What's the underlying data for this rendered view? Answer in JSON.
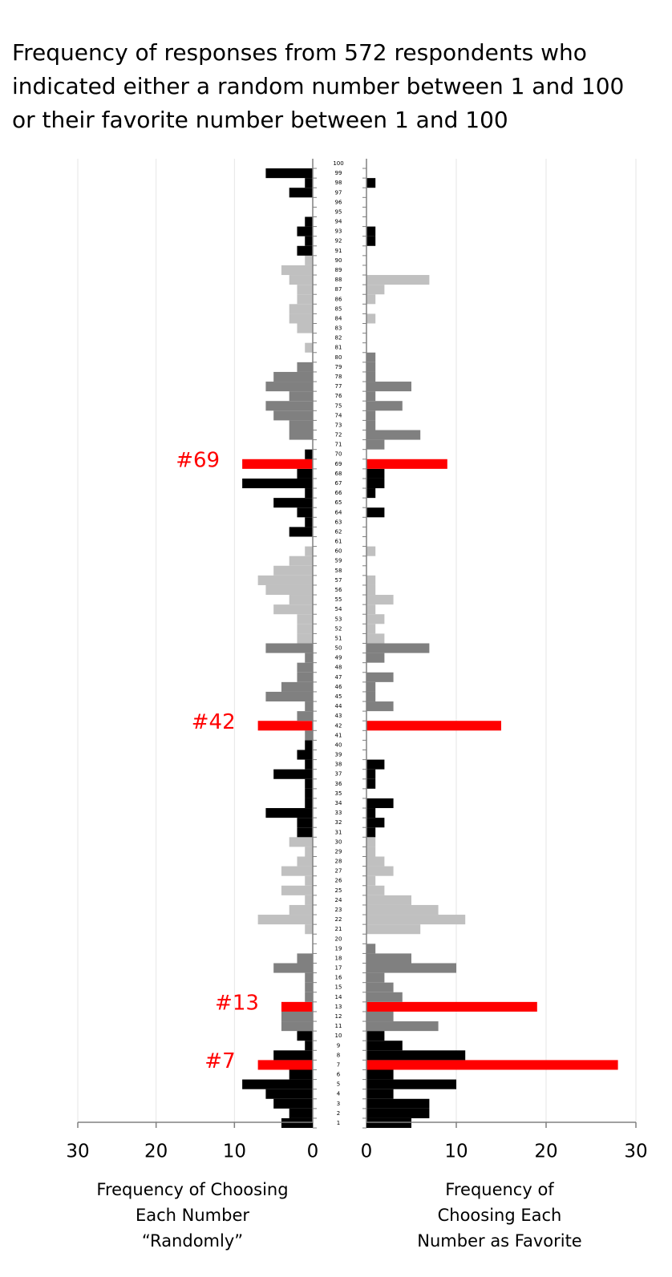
{
  "chart_data": {
    "type": "butterfly",
    "title": [
      "Frequency of responses from 572 respondents who",
      "indicated either a random number between 1 and 100",
      "or their favorite number between 1 and 100"
    ],
    "categories": [
      1,
      2,
      3,
      4,
      5,
      6,
      7,
      8,
      9,
      10,
      11,
      12,
      13,
      14,
      15,
      16,
      17,
      18,
      19,
      20,
      21,
      22,
      23,
      24,
      25,
      26,
      27,
      28,
      29,
      30,
      31,
      32,
      33,
      34,
      35,
      36,
      37,
      38,
      39,
      40,
      41,
      42,
      43,
      44,
      45,
      46,
      47,
      48,
      49,
      50,
      51,
      52,
      53,
      54,
      55,
      56,
      57,
      58,
      59,
      60,
      61,
      62,
      63,
      64,
      65,
      66,
      67,
      68,
      69,
      70,
      71,
      72,
      73,
      74,
      75,
      76,
      77,
      78,
      79,
      80,
      81,
      82,
      83,
      84,
      85,
      86,
      87,
      88,
      89,
      90,
      91,
      92,
      93,
      94,
      95,
      96,
      97,
      98,
      99,
      100
    ],
    "color_cycle": [
      "#000000",
      "#808080",
      "#c0c0c0"
    ],
    "color_group_size": 10,
    "highlight_color": "#ff0000",
    "annotations": [
      {
        "text": "#7",
        "value": 7
      },
      {
        "text": "#13",
        "value": 13
      },
      {
        "text": "#42",
        "value": 42
      },
      {
        "text": "#69",
        "value": 69
      }
    ],
    "grid": true,
    "left": {
      "xlabel": [
        "Frequency of Choosing",
        "Each Number",
        "“Randomly”"
      ],
      "xlim": [
        30,
        0
      ],
      "xticks": [
        30,
        20,
        10,
        0
      ],
      "values": [
        4,
        3,
        5,
        6,
        9,
        3,
        7,
        5,
        1,
        2,
        4,
        4,
        4,
        1,
        1,
        1,
        5,
        2,
        0,
        0,
        1,
        7,
        3,
        1,
        4,
        1,
        4,
        2,
        1,
        3,
        2,
        2,
        6,
        1,
        1,
        1,
        5,
        1,
        2,
        1,
        1,
        7,
        2,
        1,
        6,
        4,
        2,
        2,
        1,
        6,
        2,
        2,
        2,
        5,
        3,
        6,
        7,
        5,
        3,
        1,
        0,
        3,
        1,
        2,
        5,
        1,
        9,
        2,
        9,
        1,
        0,
        3,
        3,
        5,
        6,
        3,
        6,
        5,
        2,
        0,
        1,
        0,
        2,
        3,
        3,
        2,
        2,
        3,
        4,
        1,
        2,
        1,
        2,
        1,
        0,
        0,
        3,
        1,
        6,
        0
      ]
    },
    "right": {
      "xlabel": [
        "Frequency of",
        "Choosing Each",
        "Number as Favorite"
      ],
      "xlim": [
        0,
        30
      ],
      "xticks": [
        0,
        10,
        20,
        30
      ],
      "values": [
        5,
        7,
        7,
        3,
        10,
        3,
        28,
        11,
        4,
        2,
        8,
        3,
        19,
        4,
        3,
        2,
        10,
        5,
        1,
        0,
        6,
        11,
        8,
        5,
        2,
        1,
        3,
        2,
        1,
        1,
        1,
        2,
        1,
        3,
        0,
        1,
        1,
        2,
        0,
        0,
        0,
        15,
        0,
        3,
        1,
        1,
        3,
        0,
        2,
        7,
        2,
        1,
        2,
        1,
        3,
        1,
        1,
        0,
        0,
        1,
        0,
        0,
        0,
        2,
        0,
        1,
        2,
        2,
        9,
        0,
        2,
        6,
        1,
        1,
        4,
        1,
        5,
        1,
        1,
        1,
        0,
        0,
        0,
        1,
        0,
        1,
        2,
        7,
        0,
        0,
        0,
        1,
        1,
        0,
        0,
        0,
        0,
        1,
        0,
        0
      ]
    }
  }
}
